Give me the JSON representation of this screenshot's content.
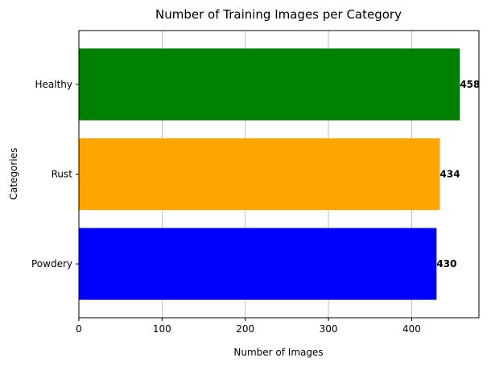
{
  "chart_data": {
    "type": "bar",
    "orientation": "horizontal",
    "title": "Number of Training Images per Category",
    "xlabel": "Number of Images",
    "ylabel": "Categories",
    "categories": [
      "Powdery",
      "Rust",
      "Healthy"
    ],
    "values": [
      430,
      434,
      458
    ],
    "colors": [
      "#0000ff",
      "#ffa500",
      "#008000"
    ],
    "value_labels": [
      "430",
      "434",
      "458"
    ],
    "xlim": [
      0,
      480.9
    ],
    "x_ticks": [
      0,
      100,
      200,
      300,
      400
    ],
    "x_tick_labels": [
      "0",
      "100",
      "200",
      "300",
      "400"
    ],
    "grid": {
      "x": true,
      "y": false
    },
    "legend": "none"
  }
}
